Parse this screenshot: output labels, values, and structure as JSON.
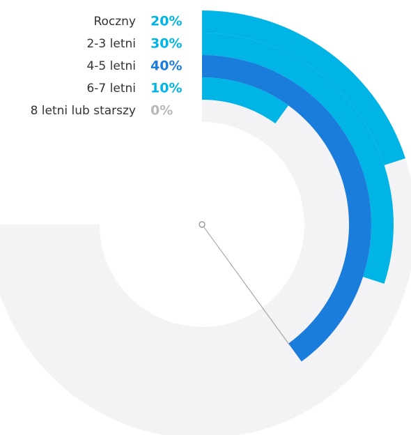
{
  "chart_data": {
    "type": "radial-bar",
    "categories": [
      "Roczny",
      "2-3 letni",
      "4-5 letni",
      "6-7 letni",
      "8 letni lub starszy"
    ],
    "values": [
      20,
      30,
      40,
      10,
      0
    ],
    "value_labels": [
      "20%",
      "30%",
      "40%",
      "10%",
      "0%"
    ],
    "colors": [
      "#00b4e6",
      "#00b4e6",
      "#1a7cdb",
      "#00b4e6",
      "#b8b8b8"
    ],
    "xlim": [
      0,
      100
    ]
  }
}
